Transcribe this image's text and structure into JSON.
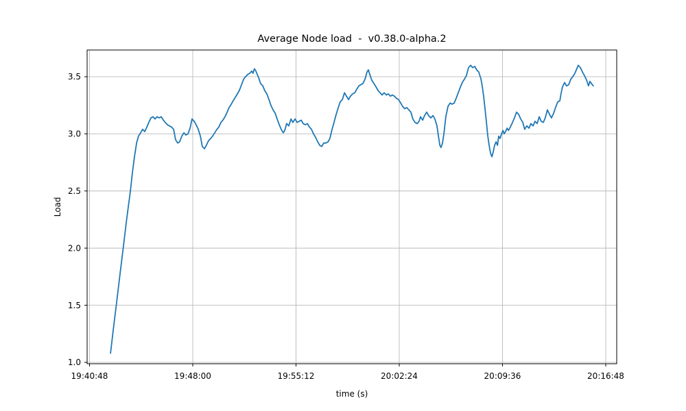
{
  "chart_data": {
    "type": "line",
    "title": "Average Node load  -  v0.38.0-alpha.2",
    "xlabel": "time (s)",
    "ylabel": "Load",
    "grid": true,
    "legend": "none",
    "colors": {
      "line": "#1f77b4",
      "grid": "#b0b0b0",
      "spine": "#000000",
      "text": "#000000",
      "background": "#ffffff"
    },
    "axis": {
      "t_min": -10,
      "t_max": 2206,
      "y_min": 0.988,
      "y_max": 3.734
    },
    "x_ticks": [
      {
        "t": 0,
        "label": "19:40:48"
      },
      {
        "t": 432,
        "label": "19:48:00"
      },
      {
        "t": 864,
        "label": "19:55:12"
      },
      {
        "t": 1296,
        "label": "20:02:24"
      },
      {
        "t": 1728,
        "label": "20:09:36"
      },
      {
        "t": 2160,
        "label": "20:16:48"
      }
    ],
    "y_ticks": [
      {
        "v": 1.0,
        "label": "1.0"
      },
      {
        "v": 1.5,
        "label": "1.5"
      },
      {
        "v": 2.0,
        "label": "2.0"
      },
      {
        "v": 2.5,
        "label": "2.5"
      },
      {
        "v": 3.0,
        "label": "3.0"
      },
      {
        "v": 3.5,
        "label": "3.5"
      }
    ],
    "series": [
      {
        "name": "average node load",
        "points": [
          [
            88,
            1.08
          ],
          [
            99,
            1.28
          ],
          [
            113,
            1.52
          ],
          [
            128,
            1.78
          ],
          [
            142,
            2.02
          ],
          [
            156,
            2.26
          ],
          [
            171,
            2.5
          ],
          [
            179,
            2.65
          ],
          [
            188,
            2.8
          ],
          [
            197,
            2.92
          ],
          [
            205,
            2.98
          ],
          [
            214,
            3.01
          ],
          [
            222,
            3.04
          ],
          [
            231,
            3.02
          ],
          [
            240,
            3.06
          ],
          [
            248,
            3.1
          ],
          [
            257,
            3.14
          ],
          [
            266,
            3.15
          ],
          [
            274,
            3.13
          ],
          [
            283,
            3.15
          ],
          [
            291,
            3.14
          ],
          [
            300,
            3.15
          ],
          [
            309,
            3.12
          ],
          [
            317,
            3.1
          ],
          [
            326,
            3.08
          ],
          [
            334,
            3.07
          ],
          [
            343,
            3.06
          ],
          [
            352,
            3.04
          ],
          [
            360,
            2.95
          ],
          [
            369,
            2.92
          ],
          [
            377,
            2.93
          ],
          [
            386,
            2.98
          ],
          [
            395,
            3.01
          ],
          [
            403,
            2.99
          ],
          [
            412,
            3.0
          ],
          [
            421,
            3.05
          ],
          [
            429,
            3.13
          ],
          [
            438,
            3.11
          ],
          [
            446,
            3.08
          ],
          [
            455,
            3.04
          ],
          [
            464,
            2.98
          ],
          [
            472,
            2.89
          ],
          [
            481,
            2.87
          ],
          [
            489,
            2.9
          ],
          [
            498,
            2.94
          ],
          [
            507,
            2.96
          ],
          [
            515,
            2.98
          ],
          [
            524,
            3.01
          ],
          [
            533,
            3.04
          ],
          [
            541,
            3.06
          ],
          [
            550,
            3.1
          ],
          [
            558,
            3.12
          ],
          [
            567,
            3.15
          ],
          [
            576,
            3.19
          ],
          [
            584,
            3.23
          ],
          [
            593,
            3.26
          ],
          [
            601,
            3.29
          ],
          [
            610,
            3.32
          ],
          [
            619,
            3.35
          ],
          [
            627,
            3.38
          ],
          [
            636,
            3.43
          ],
          [
            645,
            3.48
          ],
          [
            653,
            3.5
          ],
          [
            662,
            3.52
          ],
          [
            670,
            3.53
          ],
          [
            679,
            3.55
          ],
          [
            684,
            3.53
          ],
          [
            690,
            3.57
          ],
          [
            696,
            3.55
          ],
          [
            702,
            3.52
          ],
          [
            708,
            3.49
          ],
          [
            716,
            3.44
          ],
          [
            725,
            3.42
          ],
          [
            733,
            3.38
          ],
          [
            742,
            3.35
          ],
          [
            751,
            3.3
          ],
          [
            759,
            3.25
          ],
          [
            768,
            3.21
          ],
          [
            777,
            3.18
          ],
          [
            785,
            3.13
          ],
          [
            794,
            3.08
          ],
          [
            802,
            3.04
          ],
          [
            811,
            3.01
          ],
          [
            817,
            3.03
          ],
          [
            825,
            3.09
          ],
          [
            834,
            3.07
          ],
          [
            843,
            3.13
          ],
          [
            851,
            3.1
          ],
          [
            860,
            3.13
          ],
          [
            869,
            3.1
          ],
          [
            877,
            3.11
          ],
          [
            886,
            3.12
          ],
          [
            894,
            3.09
          ],
          [
            903,
            3.08
          ],
          [
            912,
            3.09
          ],
          [
            920,
            3.06
          ],
          [
            929,
            3.04
          ],
          [
            937,
            3.0
          ],
          [
            946,
            2.97
          ],
          [
            955,
            2.93
          ],
          [
            963,
            2.9
          ],
          [
            972,
            2.89
          ],
          [
            980,
            2.92
          ],
          [
            989,
            2.92
          ],
          [
            998,
            2.93
          ],
          [
            1006,
            2.96
          ],
          [
            1015,
            3.04
          ],
          [
            1023,
            3.1
          ],
          [
            1032,
            3.17
          ],
          [
            1041,
            3.23
          ],
          [
            1049,
            3.28
          ],
          [
            1058,
            3.3
          ],
          [
            1067,
            3.36
          ],
          [
            1075,
            3.33
          ],
          [
            1084,
            3.3
          ],
          [
            1092,
            3.33
          ],
          [
            1101,
            3.35
          ],
          [
            1110,
            3.36
          ],
          [
            1118,
            3.39
          ],
          [
            1127,
            3.42
          ],
          [
            1135,
            3.43
          ],
          [
            1144,
            3.44
          ],
          [
            1153,
            3.48
          ],
          [
            1161,
            3.54
          ],
          [
            1167,
            3.56
          ],
          [
            1173,
            3.52
          ],
          [
            1181,
            3.47
          ],
          [
            1190,
            3.44
          ],
          [
            1199,
            3.41
          ],
          [
            1207,
            3.38
          ],
          [
            1216,
            3.36
          ],
          [
            1224,
            3.34
          ],
          [
            1233,
            3.36
          ],
          [
            1242,
            3.34
          ],
          [
            1250,
            3.35
          ],
          [
            1259,
            3.33
          ],
          [
            1267,
            3.34
          ],
          [
            1276,
            3.33
          ],
          [
            1285,
            3.31
          ],
          [
            1293,
            3.3
          ],
          [
            1302,
            3.27
          ],
          [
            1310,
            3.24
          ],
          [
            1319,
            3.22
          ],
          [
            1328,
            3.23
          ],
          [
            1336,
            3.21
          ],
          [
            1345,
            3.19
          ],
          [
            1353,
            3.13
          ],
          [
            1362,
            3.1
          ],
          [
            1371,
            3.09
          ],
          [
            1379,
            3.11
          ],
          [
            1385,
            3.15
          ],
          [
            1394,
            3.12
          ],
          [
            1402,
            3.16
          ],
          [
            1411,
            3.19
          ],
          [
            1419,
            3.16
          ],
          [
            1428,
            3.14
          ],
          [
            1437,
            3.16
          ],
          [
            1445,
            3.13
          ],
          [
            1454,
            3.07
          ],
          [
            1460,
            2.98
          ],
          [
            1466,
            2.9
          ],
          [
            1471,
            2.88
          ],
          [
            1477,
            2.92
          ],
          [
            1483,
            3.0
          ],
          [
            1491,
            3.15
          ],
          [
            1500,
            3.24
          ],
          [
            1509,
            3.27
          ],
          [
            1517,
            3.26
          ],
          [
            1526,
            3.27
          ],
          [
            1534,
            3.31
          ],
          [
            1543,
            3.36
          ],
          [
            1552,
            3.41
          ],
          [
            1560,
            3.45
          ],
          [
            1569,
            3.48
          ],
          [
            1577,
            3.51
          ],
          [
            1586,
            3.58
          ],
          [
            1595,
            3.6
          ],
          [
            1603,
            3.58
          ],
          [
            1612,
            3.59
          ],
          [
            1620,
            3.56
          ],
          [
            1629,
            3.54
          ],
          [
            1638,
            3.48
          ],
          [
            1643,
            3.42
          ],
          [
            1649,
            3.33
          ],
          [
            1655,
            3.22
          ],
          [
            1661,
            3.1
          ],
          [
            1666,
            2.99
          ],
          [
            1672,
            2.9
          ],
          [
            1678,
            2.83
          ],
          [
            1684,
            2.8
          ],
          [
            1689,
            2.84
          ],
          [
            1695,
            2.9
          ],
          [
            1701,
            2.93
          ],
          [
            1707,
            2.9
          ],
          [
            1712,
            2.98
          ],
          [
            1718,
            2.96
          ],
          [
            1724,
            3.0
          ],
          [
            1730,
            3.03
          ],
          [
            1735,
            3.0
          ],
          [
            1741,
            3.02
          ],
          [
            1747,
            3.05
          ],
          [
            1753,
            3.03
          ],
          [
            1761,
            3.06
          ],
          [
            1770,
            3.1
          ],
          [
            1778,
            3.14
          ],
          [
            1787,
            3.19
          ],
          [
            1796,
            3.17
          ],
          [
            1804,
            3.13
          ],
          [
            1813,
            3.1
          ],
          [
            1821,
            3.04
          ],
          [
            1830,
            3.07
          ],
          [
            1839,
            3.05
          ],
          [
            1847,
            3.09
          ],
          [
            1856,
            3.07
          ],
          [
            1864,
            3.11
          ],
          [
            1873,
            3.09
          ],
          [
            1882,
            3.15
          ],
          [
            1890,
            3.11
          ],
          [
            1899,
            3.1
          ],
          [
            1907,
            3.14
          ],
          [
            1916,
            3.21
          ],
          [
            1925,
            3.17
          ],
          [
            1933,
            3.14
          ],
          [
            1942,
            3.18
          ],
          [
            1950,
            3.23
          ],
          [
            1959,
            3.28
          ],
          [
            1968,
            3.29
          ],
          [
            1973,
            3.35
          ],
          [
            1979,
            3.41
          ],
          [
            1988,
            3.45
          ],
          [
            1996,
            3.42
          ],
          [
            2005,
            3.43
          ],
          [
            2014,
            3.48
          ],
          [
            2022,
            3.5
          ],
          [
            2031,
            3.53
          ],
          [
            2039,
            3.57
          ],
          [
            2045,
            3.6
          ],
          [
            2054,
            3.58
          ],
          [
            2063,
            3.54
          ],
          [
            2071,
            3.51
          ],
          [
            2080,
            3.47
          ],
          [
            2088,
            3.42
          ],
          [
            2094,
            3.46
          ],
          [
            2100,
            3.44
          ],
          [
            2108,
            3.42
          ]
        ]
      }
    ]
  }
}
